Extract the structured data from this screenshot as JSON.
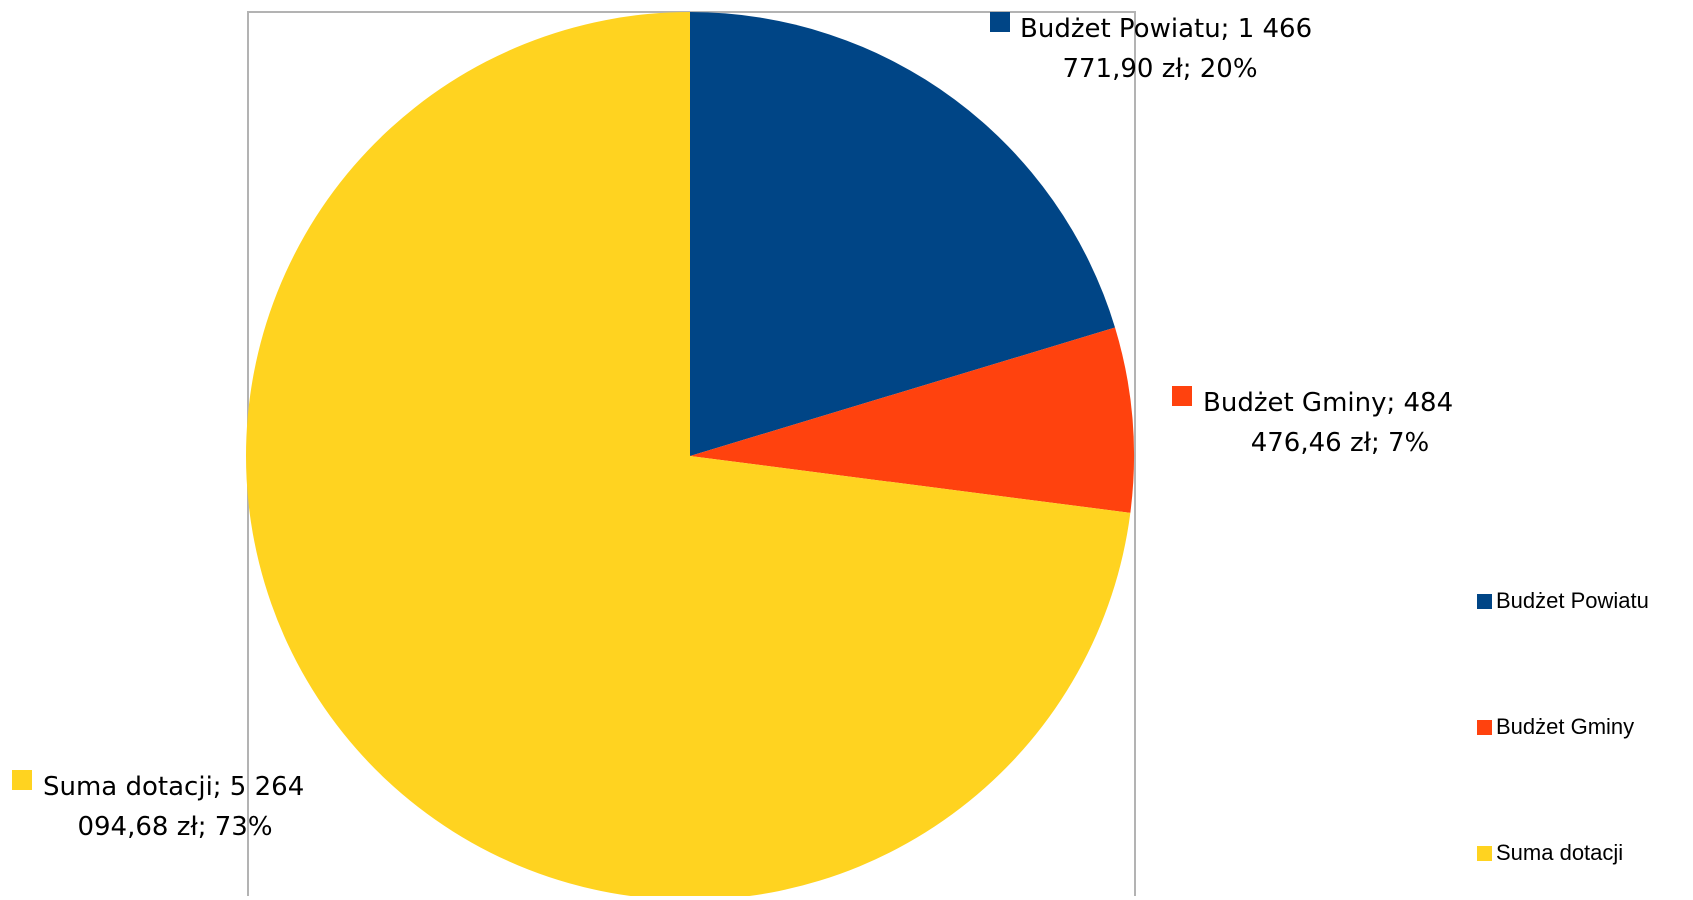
{
  "chart_data": {
    "type": "pie",
    "title": "",
    "categories": [
      "Budżet Powiatu",
      "Budżet Gminy",
      "Suma dotacji"
    ],
    "values": [
      1466771.9,
      484476.46,
      5264094.68
    ],
    "percentages": [
      20,
      7,
      73
    ],
    "colors": [
      "#004586",
      "#ff420e",
      "#ffd320"
    ],
    "data_labels": [
      {
        "line1": "Budżet Powiatu; 1 466",
        "line2": "771,90 zł; 20%"
      },
      {
        "line1": "Budżet Gminy; 484",
        "line2": "476,46 zł; 7%"
      },
      {
        "line1": "Suma dotacji; 5 264",
        "line2": "094,68 zł; 73%"
      }
    ],
    "legend": {
      "position": "right",
      "entries": [
        "Budżet Powiatu",
        "Budżet Gminy",
        "Suma dotacji"
      ]
    }
  }
}
